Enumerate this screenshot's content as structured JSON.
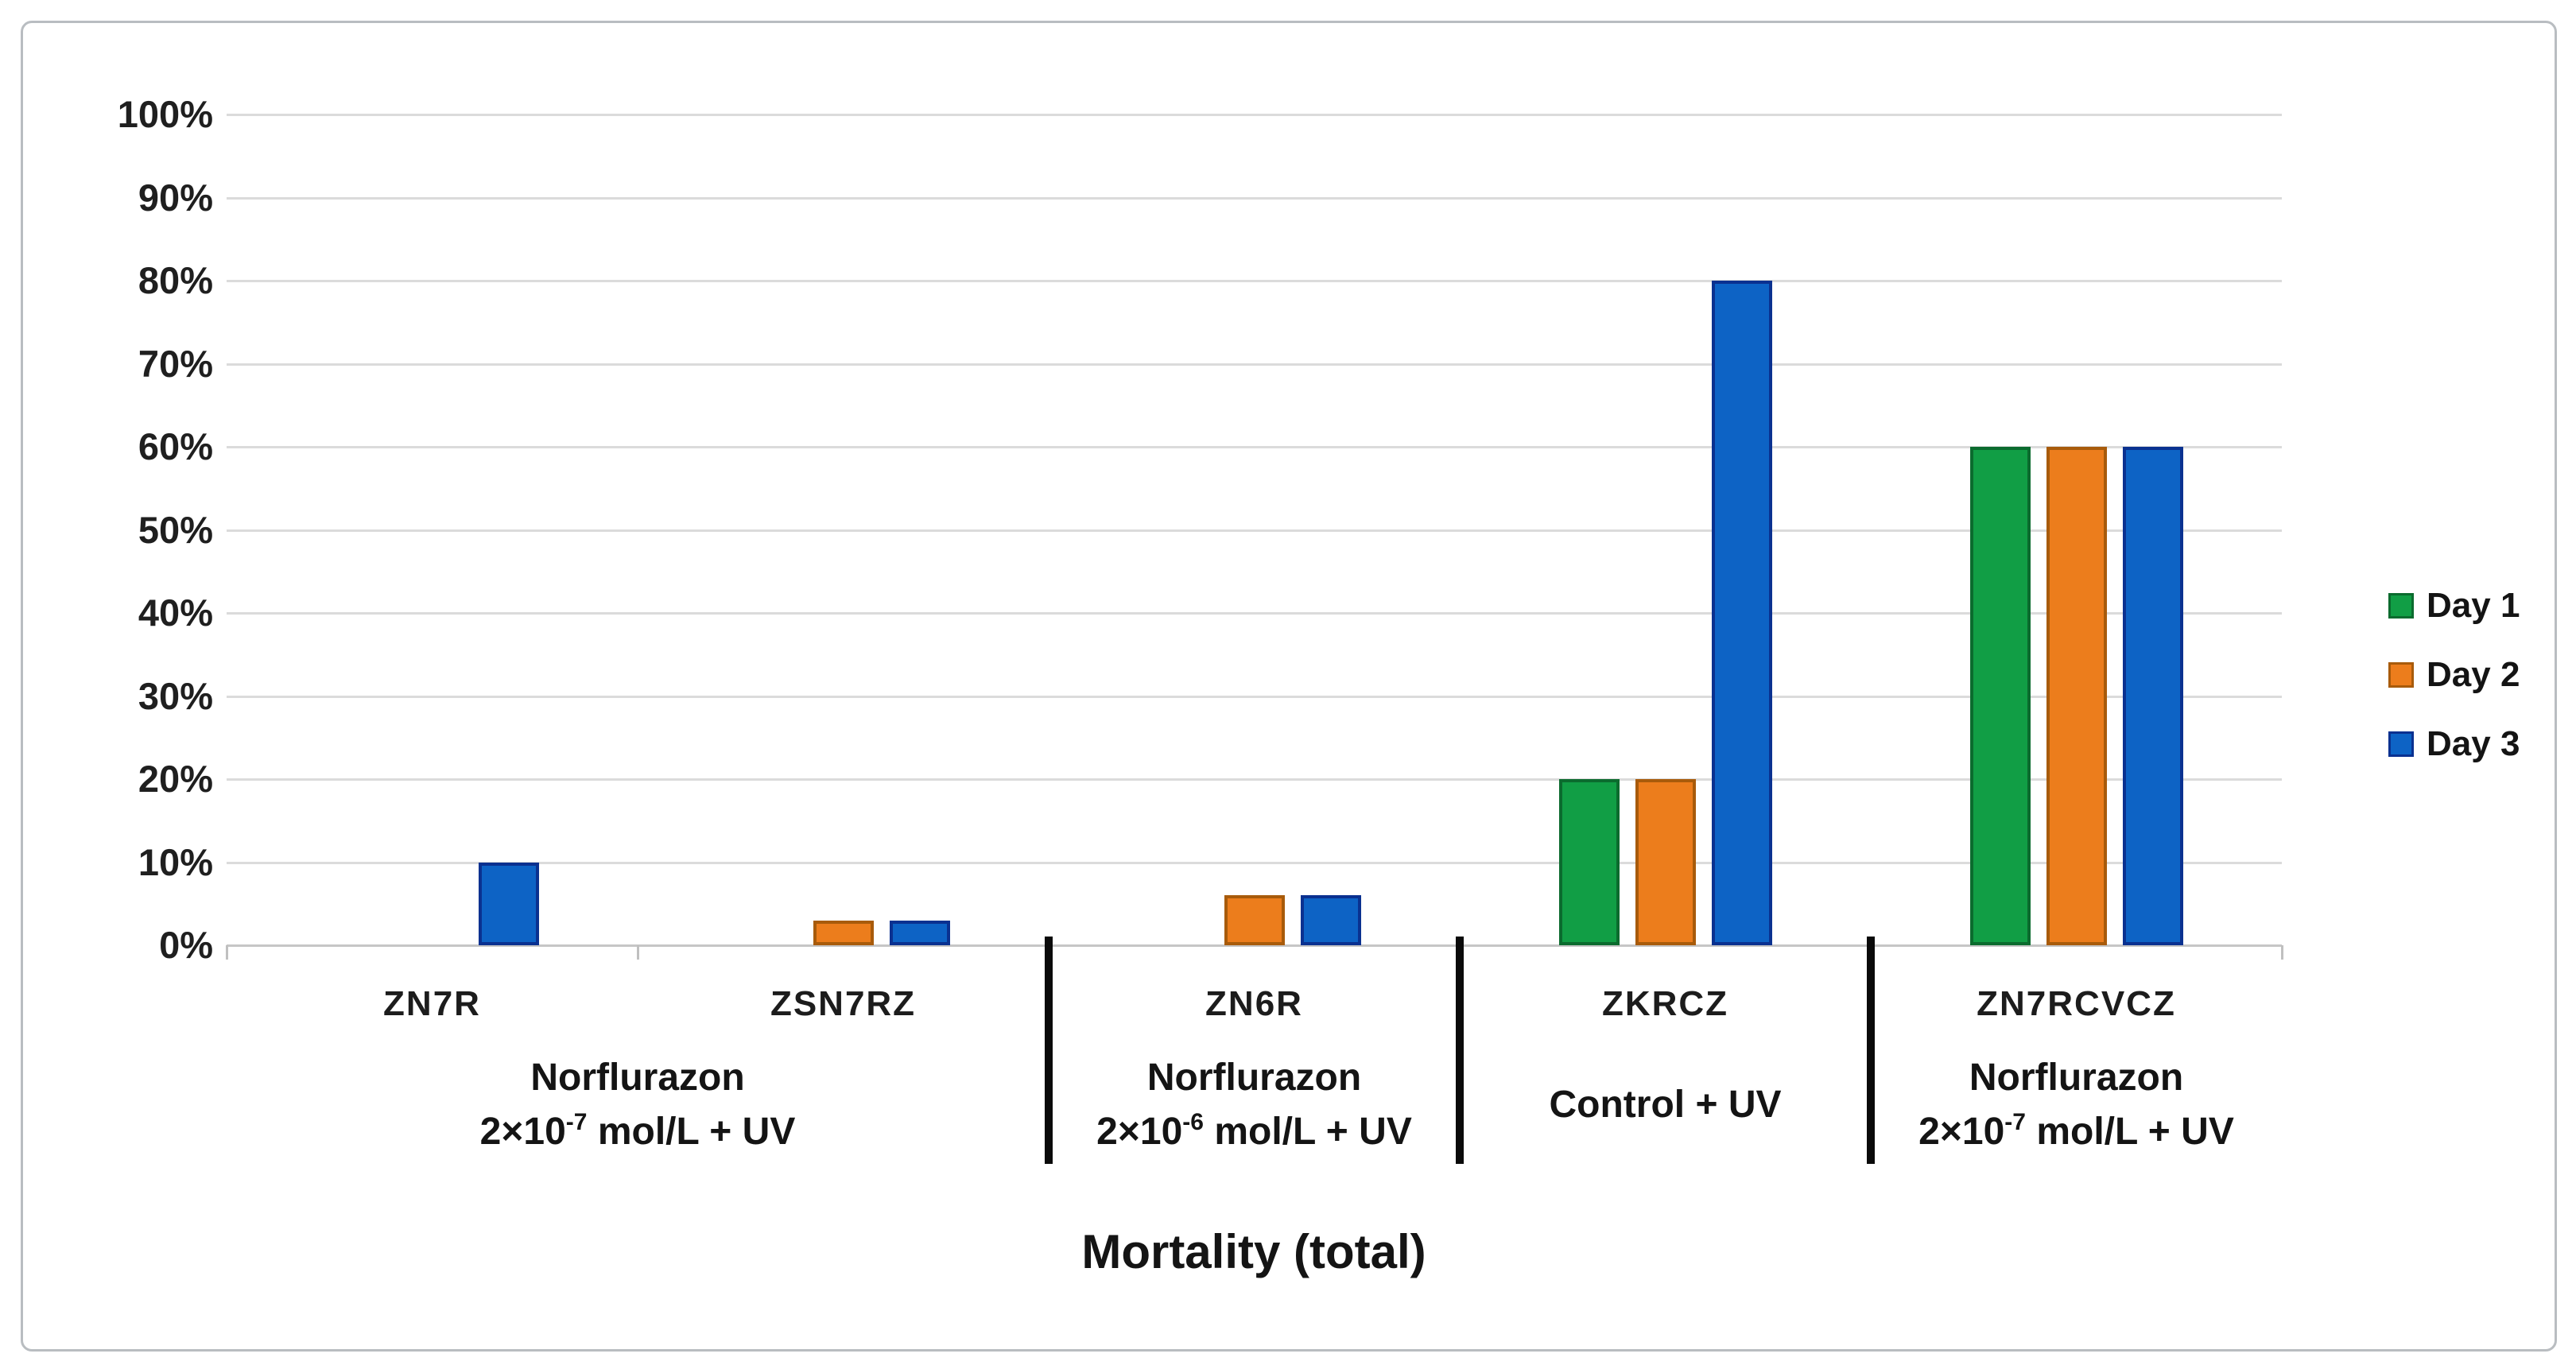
{
  "figure": {
    "background_color": "#ffffff",
    "border_color": "#b9bdc1"
  },
  "chart_data": {
    "type": "bar",
    "title": "Mortality (total)",
    "xlabel": "",
    "ylabel": "",
    "ylim": [
      0,
      100
    ],
    "ytick_step": 10,
    "ytick_suffix": "%",
    "grid": true,
    "gridline_color": "#dbdbdb",
    "legend_position": "right",
    "series": [
      {
        "name": "Day 1",
        "color": "#119E45",
        "border_color": "#0B6B2E"
      },
      {
        "name": "Day 2",
        "color": "#EC7D1C",
        "border_color": "#A85B0B"
      },
      {
        "name": "Day 3",
        "color": "#0D63C5",
        "border_color": "#0A3190"
      }
    ],
    "groups": [
      {
        "code": "ZN7R",
        "values": [
          0,
          0,
          10
        ]
      },
      {
        "code": "ZSN7RZ",
        "values": [
          0,
          3,
          3
        ]
      },
      {
        "code": "ZN6R",
        "values": [
          0,
          6,
          6
        ]
      },
      {
        "code": "ZKRCZ",
        "values": [
          20,
          20,
          80
        ]
      },
      {
        "code": "ZN7RCVCZ",
        "values": [
          60,
          60,
          60
        ]
      }
    ],
    "sections": [
      {
        "group_indexes": [
          0,
          1
        ],
        "line1": "Norflurazon",
        "line2_prefix": "2×10",
        "line2_sup": "-7",
        "line2_suffix": " mol/L + UV"
      },
      {
        "group_indexes": [
          2
        ],
        "line1": "Norflurazon",
        "line2_prefix": "2×10",
        "line2_sup": "-6",
        "line2_suffix": " mol/L + UV"
      },
      {
        "group_indexes": [
          3
        ],
        "line1": "Control + UV",
        "line2_prefix": "",
        "line2_sup": "",
        "line2_suffix": ""
      },
      {
        "group_indexes": [
          4
        ],
        "line1": "Norflurazon",
        "line2_prefix": "2×10",
        "line2_sup": "-7",
        "line2_suffix": " mol/L + UV"
      }
    ]
  }
}
